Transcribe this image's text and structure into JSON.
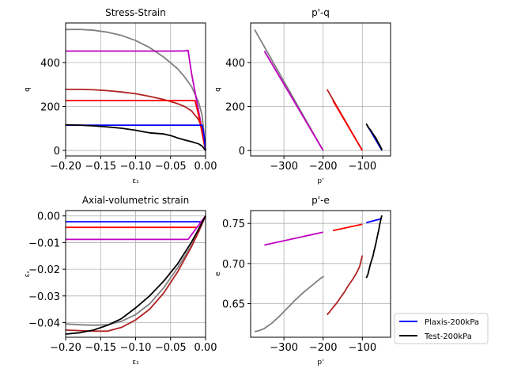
{
  "chart_data": [
    {
      "id": "stress_strain",
      "type": "line",
      "title": "Stress-Strain",
      "xlabel": "ε₁",
      "ylabel": "q",
      "xlim": [
        -0.2,
        0.0
      ],
      "ylim": [
        -25,
        580
      ],
      "xticks": [
        -0.2,
        -0.15,
        -0.1,
        -0.05,
        0.0
      ],
      "xtick_labels": [
        "−0.20",
        "−0.15",
        "−0.10",
        "−0.05",
        "0.00"
      ],
      "yticks": [
        0,
        200,
        400
      ],
      "ytick_labels": [
        "0",
        "200",
        "400"
      ],
      "grid": true,
      "series": [
        {
          "color": "#808080",
          "x": [
            -0.2,
            -0.18,
            -0.16,
            -0.14,
            -0.12,
            -0.1,
            -0.08,
            -0.06,
            -0.04,
            -0.03,
            -0.02,
            -0.01,
            -0.005,
            0.0
          ],
          "y": [
            550,
            551,
            547,
            538,
            523,
            500,
            468,
            425,
            372,
            335,
            290,
            220,
            160,
            0
          ]
        },
        {
          "color": "#c000c0",
          "x": [
            -0.2,
            -0.1,
            -0.05,
            -0.03,
            -0.025,
            -0.02,
            -0.01,
            0.0
          ],
          "y": [
            452,
            452,
            452,
            453,
            455,
            350,
            180,
            0
          ]
        },
        {
          "color": "#b22222",
          "x": [
            -0.2,
            -0.18,
            -0.16,
            -0.14,
            -0.12,
            -0.1,
            -0.08,
            -0.06,
            -0.04,
            -0.03,
            -0.02,
            -0.01,
            -0.005,
            0.0
          ],
          "y": [
            278,
            278,
            276,
            272,
            266,
            258,
            246,
            232,
            213,
            200,
            180,
            140,
            100,
            0
          ]
        },
        {
          "color": "#ff0000",
          "x": [
            -0.2,
            -0.1,
            -0.02,
            -0.015,
            -0.01,
            -0.005,
            0.0
          ],
          "y": [
            227,
            227,
            227,
            227,
            160,
            80,
            0
          ]
        },
        {
          "color": "#0000ff",
          "x": [
            -0.2,
            -0.1,
            -0.005,
            -0.003,
            0.0
          ],
          "y": [
            115,
            115,
            115,
            90,
            0
          ]
        },
        {
          "color": "#000000",
          "x": [
            -0.2,
            -0.18,
            -0.16,
            -0.14,
            -0.12,
            -0.1,
            -0.09,
            -0.08,
            -0.06,
            -0.05,
            -0.04,
            -0.03,
            -0.02,
            -0.01,
            -0.005,
            0.0
          ],
          "y": [
            117,
            115,
            112,
            107,
            101,
            92,
            86,
            80,
            75,
            68,
            57,
            48,
            40,
            30,
            20,
            0
          ]
        }
      ]
    },
    {
      "id": "p_q",
      "type": "line",
      "title": "p'-q",
      "xlabel": "p'",
      "ylabel": "q",
      "xlim": [
        -385,
        -28
      ],
      "ylim": [
        -25,
        580
      ],
      "xticks": [
        -300,
        -200,
        -100
      ],
      "xtick_labels": [
        "−300",
        "−200",
        "−100"
      ],
      "yticks": [
        0,
        200,
        400
      ],
      "ytick_labels": [
        "0",
        "200",
        "400"
      ],
      "grid": true,
      "series": [
        {
          "color": "#808080",
          "x": [
            -375,
            -200
          ],
          "y": [
            550,
            0
          ]
        },
        {
          "color": "#c000c0",
          "x": [
            -350,
            -200
          ],
          "y": [
            452,
            0
          ]
        },
        {
          "color": "#b22222",
          "x": [
            -190,
            -100
          ],
          "y": [
            278,
            0
          ]
        },
        {
          "color": "#ff0000",
          "x": [
            -175,
            -100
          ],
          "y": [
            227,
            0
          ]
        },
        {
          "color": "#0000ff",
          "x": [
            -88,
            -50
          ],
          "y": [
            115,
            0
          ]
        },
        {
          "color": "#000000",
          "x": [
            -90,
            -85,
            -80,
            -75,
            -70,
            -65,
            -60,
            -55,
            -50
          ],
          "y": [
            122,
            105,
            95,
            82,
            68,
            55,
            38,
            22,
            3
          ]
        }
      ]
    },
    {
      "id": "axial_volumetric",
      "type": "line",
      "title": "Axial-volumetric strain",
      "xlabel": "ε₁",
      "ylabel": "εᵥ",
      "xlim": [
        -0.2,
        0.0
      ],
      "ylim": [
        -0.0455,
        0.002
      ],
      "xticks": [
        -0.2,
        -0.15,
        -0.1,
        -0.05,
        0.0
      ],
      "xtick_labels": [
        "−0.20",
        "−0.15",
        "−0.10",
        "−0.05",
        "0.00"
      ],
      "yticks": [
        0.0,
        -0.01,
        -0.02,
        -0.03,
        -0.04
      ],
      "ytick_labels": [
        "0.00",
        "−0.01",
        "−0.02",
        "−0.03",
        "−0.04"
      ],
      "grid": true,
      "series": [
        {
          "color": "#0000ff",
          "x": [
            -0.2,
            -0.005,
            0.0
          ],
          "y": [
            -0.0022,
            -0.0022,
            0.0
          ]
        },
        {
          "color": "#ff0000",
          "x": [
            -0.2,
            -0.012,
            0.0
          ],
          "y": [
            -0.0043,
            -0.0043,
            0.0
          ]
        },
        {
          "color": "#c000c0",
          "x": [
            -0.2,
            -0.025,
            0.0
          ],
          "y": [
            -0.0088,
            -0.0088,
            0.0
          ]
        },
        {
          "color": "#808080",
          "x": [
            -0.2,
            -0.18,
            -0.16,
            -0.14,
            -0.12,
            -0.1,
            -0.08,
            -0.06,
            -0.04,
            -0.02,
            -0.01,
            0.0
          ],
          "y": [
            -0.0405,
            -0.0408,
            -0.041,
            -0.0408,
            -0.0395,
            -0.037,
            -0.033,
            -0.027,
            -0.0195,
            -0.011,
            -0.006,
            0.0
          ]
        },
        {
          "color": "#b22222",
          "x": [
            -0.2,
            -0.18,
            -0.16,
            -0.14,
            -0.12,
            -0.1,
            -0.08,
            -0.06,
            -0.04,
            -0.02,
            -0.01,
            0.0
          ],
          "y": [
            -0.0428,
            -0.043,
            -0.0432,
            -0.0432,
            -0.0418,
            -0.039,
            -0.035,
            -0.029,
            -0.021,
            -0.0115,
            -0.006,
            0.0
          ]
        },
        {
          "color": "#000000",
          "x": [
            -0.2,
            -0.18,
            -0.16,
            -0.14,
            -0.12,
            -0.1,
            -0.08,
            -0.06,
            -0.04,
            -0.02,
            -0.01,
            0.0
          ],
          "y": [
            -0.0443,
            -0.0438,
            -0.0428,
            -0.041,
            -0.0385,
            -0.0345,
            -0.03,
            -0.0245,
            -0.018,
            -0.0098,
            -0.005,
            0.0
          ]
        }
      ]
    },
    {
      "id": "p_e",
      "type": "line",
      "title": "p'-e",
      "xlabel": "p'",
      "ylabel": "e",
      "xlim": [
        -385,
        -28
      ],
      "ylim": [
        0.608,
        0.766
      ],
      "xticks": [
        -300,
        -200,
        -100
      ],
      "xtick_labels": [
        "−300",
        "−200",
        "−100"
      ],
      "yticks": [
        0.65,
        0.7,
        0.75
      ],
      "ytick_labels": [
        "0.65",
        "0.70",
        "0.75"
      ],
      "grid": true,
      "series": [
        {
          "color": "#c000c0",
          "x": [
            -350,
            -200
          ],
          "y": [
            0.723,
            0.739
          ]
        },
        {
          "color": "#ff0000",
          "x": [
            -175,
            -100
          ],
          "y": [
            0.741,
            0.749
          ]
        },
        {
          "color": "#0000ff",
          "x": [
            -90,
            -50
          ],
          "y": [
            0.751,
            0.756
          ]
        },
        {
          "color": "#808080",
          "x": [
            -375,
            -365,
            -350,
            -330,
            -310,
            -290,
            -270,
            -250,
            -230,
            -215,
            -205,
            -198
          ],
          "y": [
            0.615,
            0.616,
            0.619,
            0.626,
            0.635,
            0.645,
            0.655,
            0.664,
            0.672,
            0.678,
            0.682,
            0.684
          ]
        },
        {
          "color": "#b22222",
          "x": [
            -190,
            -183,
            -175,
            -165,
            -155,
            -145,
            -135,
            -125,
            -115,
            -107,
            -100
          ],
          "y": [
            0.636,
            0.64,
            0.645,
            0.651,
            0.658,
            0.665,
            0.673,
            0.68,
            0.688,
            0.696,
            0.71
          ]
        },
        {
          "color": "#000000",
          "x": [
            -90,
            -86,
            -83,
            -80,
            -77,
            -73,
            -70,
            -66,
            -62,
            -58,
            -55,
            -52,
            -50
          ],
          "y": [
            0.682,
            0.686,
            0.692,
            0.698,
            0.703,
            0.709,
            0.716,
            0.724,
            0.733,
            0.742,
            0.75,
            0.757,
            0.76
          ]
        }
      ]
    }
  ],
  "legend": {
    "entries": [
      {
        "label": "Plaxis-200kPa",
        "color": "#0000ff"
      },
      {
        "label": "Test-200kPa",
        "color": "#000000"
      }
    ]
  }
}
